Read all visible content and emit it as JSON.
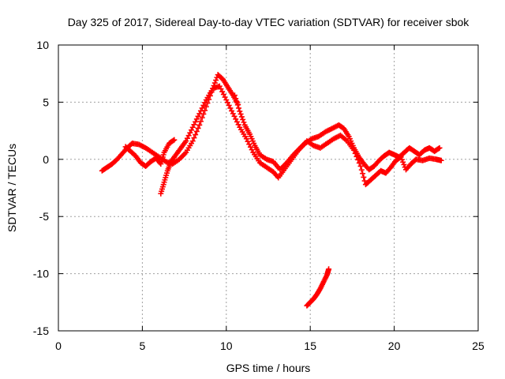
{
  "chart_data": {
    "type": "scatter",
    "title": "Day 325 of 2017, Sidereal Day-to-day VTEC variation (SDTVAR) for receiver sbok",
    "xlabel": "GPS time / hours",
    "ylabel": "SDTVAR / TECUs",
    "xlim": [
      0,
      25
    ],
    "ylim": [
      -15,
      10
    ],
    "x_ticks": [
      0,
      5,
      10,
      15,
      20,
      25
    ],
    "y_ticks": [
      10,
      5,
      0,
      -5,
      -10,
      -15
    ],
    "x_tick_labels": [
      "0",
      "5",
      "10",
      "15",
      "20",
      "25"
    ],
    "y_tick_labels": [
      "10",
      "5",
      "0",
      "-5",
      "-10",
      "-15"
    ],
    "grid": true,
    "marker": "plus",
    "color": "#ff0000",
    "series": [
      {
        "name": "track-1",
        "points": [
          [
            2.6,
            -1.0
          ],
          [
            2.9,
            -0.7
          ],
          [
            3.2,
            -0.4
          ],
          [
            3.5,
            0.0
          ],
          [
            3.8,
            0.5
          ],
          [
            4.1,
            1.0
          ],
          [
            4.4,
            1.4
          ],
          [
            4.8,
            1.3
          ],
          [
            5.2,
            1.0
          ],
          [
            5.6,
            0.6
          ],
          [
            6.0,
            0.2
          ],
          [
            6.4,
            -0.2
          ],
          [
            6.8,
            -0.4
          ],
          [
            7.2,
            0.0
          ],
          [
            7.6,
            0.6
          ],
          [
            8.0,
            1.6
          ],
          [
            8.4,
            3.0
          ],
          [
            8.8,
            4.6
          ],
          [
            9.2,
            6.2
          ],
          [
            9.5,
            7.4
          ],
          [
            9.8,
            7.0
          ],
          [
            10.1,
            6.3
          ],
          [
            10.4,
            5.6
          ],
          [
            10.7,
            4.8
          ]
        ]
      },
      {
        "name": "track-2",
        "points": [
          [
            4.0,
            1.1
          ],
          [
            4.3,
            0.7
          ],
          [
            4.6,
            0.3
          ],
          [
            4.9,
            -0.3
          ],
          [
            5.2,
            -0.6
          ],
          [
            5.5,
            -0.2
          ],
          [
            5.8,
            0.1
          ],
          [
            6.1,
            -0.4
          ],
          [
            6.3,
            0.6
          ],
          [
            6.6,
            1.4
          ],
          [
            6.9,
            1.7
          ]
        ]
      },
      {
        "name": "track-3",
        "points": [
          [
            6.1,
            -3.0
          ],
          [
            6.3,
            -2.0
          ],
          [
            6.5,
            -1.0
          ],
          [
            6.7,
            -0.2
          ],
          [
            7.0,
            0.4
          ],
          [
            7.3,
            1.0
          ],
          [
            7.6,
            1.6
          ],
          [
            8.0,
            2.8
          ],
          [
            8.4,
            4.0
          ],
          [
            8.8,
            5.2
          ],
          [
            9.2,
            6.2
          ],
          [
            9.6,
            6.4
          ],
          [
            10.0,
            5.2
          ],
          [
            10.4,
            4.0
          ],
          [
            10.8,
            2.8
          ],
          [
            11.2,
            1.8
          ],
          [
            11.6,
            0.6
          ],
          [
            12.0,
            -0.3
          ],
          [
            12.4,
            -0.7
          ],
          [
            12.8,
            -1.1
          ],
          [
            13.1,
            -1.6
          ],
          [
            13.5,
            -0.8
          ],
          [
            13.9,
            0.0
          ],
          [
            14.3,
            0.8
          ],
          [
            14.7,
            1.4
          ],
          [
            15.1,
            1.8
          ],
          [
            15.5,
            2.0
          ],
          [
            15.9,
            2.4
          ],
          [
            16.3,
            2.7
          ],
          [
            16.7,
            3.0
          ],
          [
            17.0,
            2.7
          ],
          [
            17.3,
            2.0
          ],
          [
            17.6,
            1.0
          ],
          [
            17.9,
            0.2
          ],
          [
            18.2,
            -0.4
          ],
          [
            18.5,
            -0.9
          ],
          [
            18.8,
            -0.6
          ],
          [
            19.1,
            -0.1
          ],
          [
            19.4,
            0.3
          ],
          [
            19.7,
            0.6
          ],
          [
            20.0,
            0.4
          ],
          [
            20.3,
            0.2
          ],
          [
            20.6,
            0.6
          ],
          [
            20.9,
            1.0
          ],
          [
            21.2,
            0.7
          ],
          [
            21.5,
            0.4
          ],
          [
            21.8,
            0.8
          ],
          [
            22.1,
            1.0
          ],
          [
            22.4,
            0.7
          ],
          [
            22.7,
            1.0
          ]
        ]
      },
      {
        "name": "track-4",
        "points": [
          [
            10.5,
            5.6
          ],
          [
            10.8,
            4.2
          ],
          [
            11.1,
            3.0
          ],
          [
            11.4,
            2.2
          ],
          [
            11.7,
            1.2
          ],
          [
            12.0,
            0.4
          ],
          [
            12.4,
            0.0
          ],
          [
            12.8,
            -0.2
          ],
          [
            13.2,
            -0.9
          ],
          [
            13.6,
            -0.3
          ],
          [
            14.0,
            0.4
          ],
          [
            14.4,
            1.0
          ],
          [
            14.8,
            1.6
          ],
          [
            15.2,
            1.2
          ],
          [
            15.6,
            1.0
          ],
          [
            16.0,
            1.4
          ],
          [
            16.4,
            1.8
          ],
          [
            16.8,
            2.1
          ],
          [
            17.2,
            1.6
          ],
          [
            17.6,
            0.8
          ],
          [
            18.0,
            -0.6
          ],
          [
            18.3,
            -2.2
          ],
          [
            18.6,
            -1.8
          ],
          [
            18.9,
            -1.4
          ],
          [
            19.2,
            -1.0
          ],
          [
            19.5,
            -1.2
          ],
          [
            19.8,
            -0.7
          ],
          [
            20.1,
            -0.1
          ],
          [
            20.4,
            0.2
          ],
          [
            20.7,
            -0.9
          ],
          [
            21.0,
            -0.4
          ],
          [
            21.3,
            0.0
          ],
          [
            21.7,
            -0.1
          ],
          [
            22.1,
            0.1
          ],
          [
            22.5,
            0.0
          ],
          [
            22.8,
            -0.1
          ]
        ]
      },
      {
        "name": "track-5",
        "points": [
          [
            14.8,
            -12.8
          ],
          [
            15.0,
            -12.5
          ],
          [
            15.2,
            -12.2
          ],
          [
            15.4,
            -11.8
          ],
          [
            15.6,
            -11.3
          ],
          [
            15.8,
            -10.7
          ],
          [
            16.0,
            -10.1
          ],
          [
            16.1,
            -9.6
          ]
        ]
      }
    ]
  }
}
